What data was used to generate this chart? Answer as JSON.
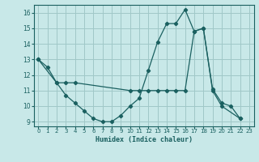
{
  "xlabel": "Humidex (Indice chaleur)",
  "bg_color": "#c8e8e8",
  "grid_color": "#a0c8c8",
  "line_color": "#1a6060",
  "xlim": [
    -0.5,
    23.5
  ],
  "ylim": [
    8.7,
    16.5
  ],
  "yticks": [
    9,
    10,
    11,
    12,
    13,
    14,
    15,
    16
  ],
  "xticks": [
    0,
    1,
    2,
    3,
    4,
    5,
    6,
    7,
    8,
    9,
    10,
    11,
    12,
    13,
    14,
    15,
    16,
    17,
    18,
    19,
    20,
    21,
    22,
    23
  ],
  "line1_x": [
    0,
    1,
    2,
    3,
    4,
    5,
    6,
    7,
    8,
    9,
    10,
    11,
    12,
    13,
    14,
    15,
    16,
    17,
    18,
    19,
    20,
    21,
    22
  ],
  "line1_y": [
    13.0,
    12.5,
    11.5,
    10.7,
    10.2,
    9.7,
    9.2,
    9.0,
    9.0,
    9.4,
    10.0,
    10.5,
    12.3,
    14.1,
    15.3,
    15.3,
    16.2,
    14.8,
    15.0,
    11.1,
    10.2,
    10.0,
    9.2
  ],
  "line2_x": [
    0,
    2,
    3,
    4,
    10,
    11,
    12,
    13,
    14,
    15,
    16,
    17,
    18,
    19,
    20,
    22
  ],
  "line2_y": [
    13.0,
    11.5,
    11.5,
    11.5,
    11.0,
    11.0,
    11.0,
    11.0,
    11.0,
    11.0,
    11.0,
    14.8,
    15.0,
    11.0,
    10.0,
    9.2
  ]
}
